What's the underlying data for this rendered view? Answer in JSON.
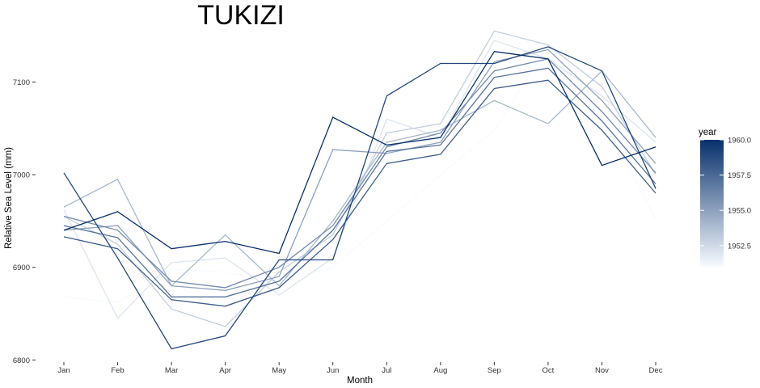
{
  "chart_data": {
    "type": "line",
    "title": "TUKIZI",
    "xlabel": "Month",
    "ylabel": "Relative Sea Level (mm)",
    "categories": [
      "Jan",
      "Feb",
      "Mar",
      "Apr",
      "May",
      "Jun",
      "Jul",
      "Aug",
      "Sep",
      "Oct",
      "Nov",
      "Dec"
    ],
    "ylim": [
      6795,
      7158
    ],
    "yticks": [
      6800,
      6900,
      7000,
      7100
    ],
    "grid": false,
    "legend": {
      "title": "year",
      "position": "right",
      "range": [
        1951,
        1960
      ],
      "ticks": [
        "1952.5",
        "1955.0",
        "1957.5",
        "1960.0"
      ],
      "color_low": "#f7fbff",
      "color_high": "#08306b"
    },
    "series": [
      {
        "year": 1951,
        "values": [
          6868,
          6862,
          6898,
          6895,
          6885,
          6900,
          6950,
          7000,
          7048,
          7140,
          7062,
          6952
        ]
      },
      {
        "year": 1952,
        "values": [
          6962,
          6845,
          6905,
          6910,
          6870,
          6910,
          7060,
          7040,
          7145,
          7125,
          7085,
          7035
        ]
      },
      {
        "year": 1953,
        "values": [
          6955,
          6925,
          6855,
          6836,
          6895,
          6935,
          7045,
          7055,
          7155,
          7140,
          7095,
          7000
        ]
      },
      {
        "year": 1954,
        "values": [
          6965,
          6995,
          6880,
          6935,
          6880,
          6950,
          7035,
          7048,
          7080,
          7055,
          7112,
          7040
        ]
      },
      {
        "year": 1955,
        "values": [
          6940,
          6945,
          6880,
          6875,
          6890,
          7027,
          7023,
          7035,
          7122,
          7135,
          7080,
          7012
        ]
      },
      {
        "year": 1956,
        "values": [
          6955,
          6940,
          6885,
          6878,
          6900,
          6945,
          7030,
          7045,
          7112,
          7125,
          7068,
          7002
        ]
      },
      {
        "year": 1957,
        "values": [
          6945,
          6932,
          6868,
          6868,
          6885,
          6940,
          7025,
          7032,
          7105,
          7115,
          7058,
          6990
        ]
      },
      {
        "year": 1958,
        "values": [
          6933,
          6920,
          6865,
          6858,
          6878,
          6930,
          7012,
          7022,
          7093,
          7102,
          7048,
          6980
        ]
      },
      {
        "year": 1959,
        "values": [
          7002,
          6910,
          6812,
          6826,
          6908,
          6908,
          7085,
          7120,
          7120,
          7138,
          7112,
          6985
        ]
      },
      {
        "year": 1960,
        "values": [
          6940,
          6960,
          6920,
          6928,
          6915,
          7062,
          7032,
          7040,
          7133,
          7125,
          7010,
          7030
        ]
      }
    ]
  }
}
